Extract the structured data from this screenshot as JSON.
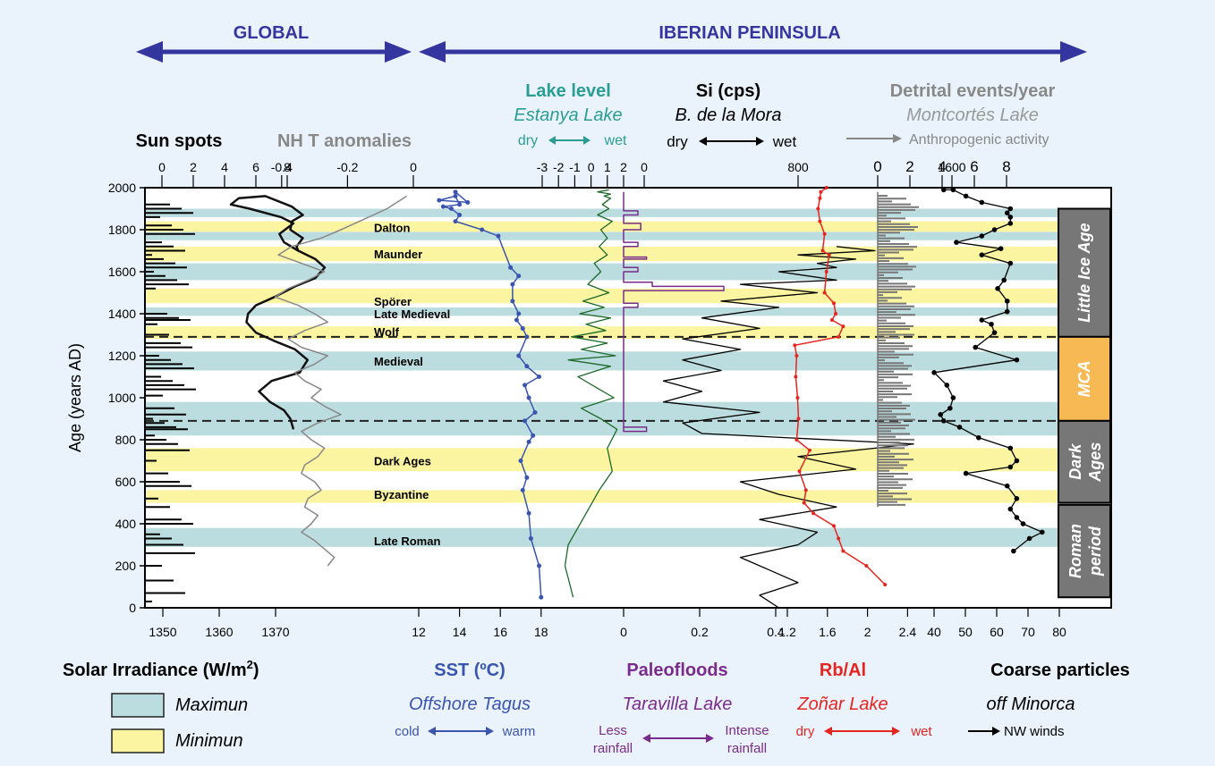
{
  "chart_data": {
    "type": "line",
    "region_labels": {
      "global": "GLOBAL",
      "iberian": "IBERIAN PENINSULA"
    },
    "ylabel": "Age (years AD)",
    "ylim": [
      0,
      2000
    ],
    "y_ticks": [
      "0",
      "200",
      "400",
      "600",
      "800",
      "1000",
      "1200",
      "1400",
      "1600",
      "1800",
      "2000"
    ],
    "bands": [
      {
        "kind": "maximum",
        "range": [
          290,
          380
        ]
      },
      {
        "kind": "minimum",
        "range": [
          500,
          560
        ]
      },
      {
        "kind": "minimum",
        "range": [
          650,
          760
        ]
      },
      {
        "kind": "maximum",
        "range": [
          820,
          980
        ]
      },
      {
        "kind": "maximum",
        "range": [
          1130,
          1220
        ]
      },
      {
        "kind": "minimum",
        "range": [
          1280,
          1340
        ]
      },
      {
        "kind": "maximum",
        "range": [
          1390,
          1430
        ]
      },
      {
        "kind": "minimum",
        "range": [
          1450,
          1520
        ]
      },
      {
        "kind": "maximum",
        "range": [
          1560,
          1640
        ]
      },
      {
        "kind": "minimum",
        "range": [
          1650,
          1720
        ]
      },
      {
        "kind": "maximum",
        "range": [
          1750,
          1790
        ]
      },
      {
        "kind": "minimum",
        "range": [
          1790,
          1840
        ]
      },
      {
        "kind": "maximum",
        "range": [
          1860,
          1900
        ]
      }
    ],
    "event_labels": [
      "Dalton",
      "Maunder",
      "Spörer",
      "Late Medieval",
      "Wolf",
      "Medieval",
      "Dark Ages",
      "Byzantine",
      "Late Roman"
    ],
    "event_years": [
      1810,
      1685,
      1460,
      1400,
      1315,
      1175,
      700,
      540,
      320
    ],
    "period_labels": [
      "Little Ice Age",
      "MCA",
      "Dark Ages",
      "Roman period"
    ],
    "period_ranges": [
      [
        1290,
        1900
      ],
      [
        890,
        1290
      ],
      [
        500,
        890
      ],
      [
        50,
        490
      ]
    ],
    "boundary_years": [
      890,
      1290
    ],
    "series": [
      {
        "key": "sunspots",
        "top_title": "Sun  spots",
        "top_ticks": [
          "0",
          "2",
          "4",
          "6",
          "8"
        ],
        "color": "#111111",
        "x": [
          8.4,
          8.2,
          7.8,
          6.9,
          6.2,
          7.0,
          8.8,
          9.3,
          8.5,
          7.2,
          6.0,
          5.4,
          5.5,
          6.0,
          7.2,
          8.5,
          9.8,
          10.4,
          9.8,
          8.7,
          7.8,
          7.5,
          8.4,
          7.6,
          5.6,
          4.4,
          4.9,
          6.6,
          8.3,
          9.0,
          8.3,
          8.2,
          9.0,
          8.6,
          8.7
        ],
        "y": [
          850,
          900,
          940,
          980,
          1030,
          1080,
          1120,
          1180,
          1230,
          1270,
          1310,
          1360,
          1400,
          1440,
          1480,
          1530,
          1570,
          1620,
          1660,
          1700,
          1740,
          1780,
          1830,
          1860,
          1900,
          1920,
          1950,
          1960,
          1910,
          1870,
          1840,
          1800,
          1760,
          1720,
          1700
        ]
      },
      {
        "key": "nhtemp",
        "top_title": "NH T anomalies",
        "top_ticks": [
          "-0.4",
          "-0.2",
          "0"
        ],
        "color": "#888888",
        "x": [
          -0.26,
          -0.24,
          -0.27,
          -0.3,
          -0.34,
          -0.31,
          -0.29,
          -0.33,
          -0.32,
          -0.28,
          -0.3,
          -0.34,
          -0.33,
          -0.29,
          -0.27,
          -0.31,
          -0.34,
          -0.29,
          -0.22,
          -0.27,
          -0.31,
          -0.28,
          -0.33,
          -0.36,
          -0.3,
          -0.26,
          -0.34,
          -0.38,
          -0.33,
          -0.26,
          -0.3,
          -0.35,
          -0.42,
          -0.38,
          -0.32,
          -0.27,
          -0.34,
          -0.41,
          -0.37,
          -0.28,
          -0.22,
          -0.15,
          -0.08,
          -0.02
        ],
        "y": [
          200,
          240,
          280,
          320,
          360,
          400,
          440,
          480,
          520,
          560,
          600,
          640,
          680,
          720,
          760,
          800,
          840,
          880,
          920,
          960,
          1000,
          1040,
          1080,
          1120,
          1160,
          1200,
          1240,
          1280,
          1320,
          1360,
          1400,
          1440,
          1480,
          1520,
          1560,
          1600,
          1640,
          1680,
          1720,
          1760,
          1800,
          1850,
          1900,
          1960
        ]
      },
      {
        "key": "sst",
        "top_title": "",
        "top_ticks": [],
        "color": "#3a55b0",
        "bottom_ticks": [
          "12",
          "14",
          "16",
          "18"
        ],
        "x": [
          18.0,
          17.9,
          17.5,
          17.4,
          17.1,
          17.3,
          17.0,
          17.4,
          17.6,
          17.2,
          17.7,
          17.4,
          17.2,
          17.9,
          17.3,
          16.9,
          17.3,
          17.1,
          16.8,
          16.9,
          16.6,
          16.6,
          16.9,
          16.5,
          15.9,
          15.1,
          13.8,
          14.0,
          13.6,
          13.2,
          14.0,
          13.8,
          13.0,
          14.4,
          13.8
        ],
        "y": [
          50,
          200,
          330,
          450,
          560,
          620,
          700,
          790,
          820,
          890,
          930,
          1000,
          1060,
          1100,
          1150,
          1200,
          1290,
          1330,
          1370,
          1400,
          1460,
          1540,
          1580,
          1620,
          1770,
          1800,
          1840,
          1870,
          1900,
          1910,
          1920,
          1960,
          1940,
          1930,
          1980
        ]
      },
      {
        "key": "lakelevel",
        "top_title": "Lake level",
        "top_subtitle": "Estanya Lake",
        "top_dir_left": "dry",
        "top_dir_right": "wet",
        "top_ticks": [
          "-3",
          "-2",
          "-1",
          "0",
          "1",
          "2"
        ],
        "color": "#1d6a2a",
        "x": [
          -1.1,
          -1.6,
          -1.4,
          -0.3,
          0.5,
          1.3,
          1.0,
          1.6,
          0.6,
          -0.6,
          1.4,
          0.3,
          -0.8,
          1.2,
          -1.4,
          1.5,
          -0.6,
          1.0,
          -1.2,
          0.9,
          -0.3,
          1.2,
          -0.7,
          0.8,
          -0.5,
          1.1,
          -0.2,
          0.6,
          0.2,
          1.0,
          0.5,
          1.0,
          0.6,
          1.3,
          0.4,
          1.1,
          0.7,
          1.2,
          0.8,
          1.2,
          0.4,
          1.1
        ],
        "y": [
          50,
          200,
          300,
          450,
          560,
          650,
          760,
          850,
          900,
          950,
          1000,
          1050,
          1100,
          1150,
          1180,
          1200,
          1230,
          1260,
          1290,
          1320,
          1350,
          1380,
          1400,
          1430,
          1460,
          1500,
          1540,
          1600,
          1640,
          1680,
          1720,
          1760,
          1800,
          1840,
          1870,
          1900,
          1920,
          1950,
          1960,
          1970,
          1980,
          1990
        ]
      },
      {
        "key": "paleofloods",
        "top_title": "",
        "top_ticks": [],
        "color": "#7a2c8c",
        "bottom_ticks": [
          "0",
          "0.2",
          "0.4"
        ],
        "x": [
          0.0,
          0.0,
          0.08,
          0.08,
          0.0,
          0.0,
          0.05,
          0.05,
          0.0,
          0.0,
          0.35,
          0.35,
          0.1,
          0.1,
          0.0,
          0.0,
          0.05,
          0.05,
          0.0,
          0.0,
          0.08,
          0.08,
          0.0,
          0.0,
          0.05,
          0.05,
          0.0,
          0.0,
          0.06,
          0.06,
          0.0,
          0.0,
          0.05,
          0.05,
          0.0,
          0.0
        ],
        "y": [
          890,
          860,
          860,
          840,
          840,
          1430,
          1430,
          1450,
          1450,
          1510,
          1510,
          1530,
          1530,
          1550,
          1550,
          1600,
          1600,
          1620,
          1620,
          1660,
          1660,
          1670,
          1670,
          1720,
          1720,
          1740,
          1740,
          1800,
          1800,
          1830,
          1830,
          1870,
          1870,
          1890,
          1890,
          1980
        ]
      },
      {
        "key": "si",
        "top_title": "Si (cps)",
        "top_subtitle": "B. de la Mora",
        "top_dir_left": "dry",
        "top_dir_right": "wet",
        "top_ticks": [
          "0",
          "800",
          "1600"
        ],
        "color": "#000000",
        "x": [
          700,
          600,
          800,
          650,
          500,
          800,
          900,
          600,
          1000,
          700,
          500,
          1100,
          800,
          1400,
          300,
          200,
          600,
          100,
          300,
          100,
          400,
          200,
          500,
          200,
          600,
          300,
          700,
          400,
          900,
          500,
          1000,
          700,
          1000,
          900,
          1100,
          800,
          1200,
          1000
        ],
        "y": [
          0,
          60,
          120,
          180,
          240,
          300,
          360,
          420,
          480,
          540,
          600,
          660,
          720,
          780,
          830,
          880,
          930,
          980,
          1030,
          1080,
          1130,
          1180,
          1230,
          1280,
          1330,
          1380,
          1430,
          1460,
          1500,
          1540,
          1560,
          1600,
          1620,
          1640,
          1660,
          1680,
          1700,
          1720
        ]
      },
      {
        "key": "rbal",
        "top_title": "",
        "top_ticks": [],
        "color": "#e52520",
        "bottom_ticks": [
          "1.2",
          "1.6",
          "2",
          "2.4"
        ],
        "x": [
          2.25,
          2.05,
          1.8,
          1.75,
          1.7,
          1.48,
          1.38,
          1.4,
          1.33,
          1.44,
          1.3,
          1.32,
          1.31,
          1.29,
          1.3,
          1.28,
          1.75,
          1.8,
          1.68,
          1.72,
          1.7,
          1.6,
          1.62,
          1.65,
          1.58,
          1.6,
          1.55,
          1.53,
          1.55,
          1.56,
          1.62
        ],
        "y": [
          110,
          200,
          270,
          330,
          390,
          450,
          500,
          560,
          650,
          750,
          800,
          900,
          1000,
          1100,
          1200,
          1250,
          1290,
          1340,
          1370,
          1400,
          1450,
          1500,
          1600,
          1680,
          1700,
          1780,
          1840,
          1900,
          1950,
          1980,
          2000
        ]
      },
      {
        "key": "detrital",
        "top_title": "Detrital events/year",
        "top_subtitle": "Montcortés Lake",
        "top_note": "Anthropogenic activity",
        "top_ticks": [
          "0",
          "2",
          "4",
          "6",
          "8"
        ],
        "color": "#777777"
      },
      {
        "key": "coarse",
        "top_title": "",
        "top_ticks": [],
        "color": "#000000",
        "bottom_ticks": [
          "40",
          "50",
          "60",
          "70",
          "80"
        ],
        "x": [
          67,
          72,
          76,
          70,
          68,
          66,
          68,
          65,
          52,
          66,
          68,
          66,
          56,
          50,
          45,
          44,
          47,
          48,
          46,
          42,
          68,
          55,
          61,
          60,
          57,
          65,
          65,
          62,
          64,
          66,
          57,
          63,
          49,
          57,
          61,
          66,
          66,
          65,
          66,
          57,
          52,
          48,
          45
        ],
        "y": [
          270,
          330,
          360,
          400,
          430,
          470,
          520,
          580,
          640,
          670,
          700,
          760,
          810,
          860,
          890,
          920,
          950,
          1000,
          1060,
          1120,
          1180,
          1240,
          1310,
          1350,
          1370,
          1410,
          1460,
          1520,
          1560,
          1640,
          1680,
          1710,
          1740,
          1770,
          1800,
          1830,
          1860,
          1880,
          1900,
          1930,
          1960,
          1990,
          1990
        ]
      }
    ],
    "bottom_titles": [
      {
        "key": "irr",
        "title": "Solar Irradiance (W/m",
        "sup": "2",
        "after": ")",
        "ticks": [
          "1350",
          "1360",
          "1370"
        ]
      },
      {
        "key": "sst",
        "title": "SST (ºC)",
        "subtitle": "Offshore Tagus",
        "dir_left": "cold",
        "dir_right": "warm"
      },
      {
        "key": "paleo",
        "title": "Paleofloods",
        "subtitle": "Taravilla Lake",
        "dir_left_1": "Less",
        "dir_left_2": "rainfall",
        "dir_right_1": "Intense",
        "dir_right_2": "rainfall"
      },
      {
        "key": "rbal",
        "title": "Rb/Al",
        "subtitle": "Zoñar Lake",
        "dir_left": "dry",
        "dir_right": "wet"
      },
      {
        "key": "coarse",
        "title": "Coarse  particles",
        "subtitle": "off Minorca",
        "note": "NW winds"
      }
    ],
    "legend": [
      {
        "label": "Maximun",
        "color": "#bcdde0"
      },
      {
        "label": "Minimun",
        "color": "#fbf4a0"
      }
    ]
  }
}
